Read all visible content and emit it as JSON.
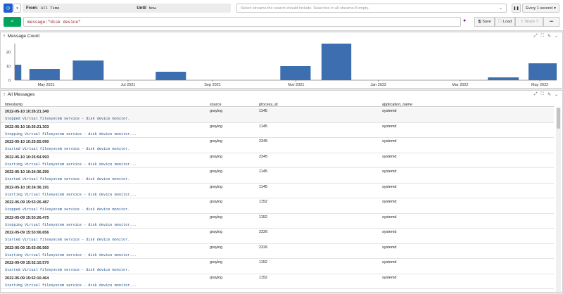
{
  "toolbar": {
    "from_label": "From:",
    "from_value": "All Time",
    "until_label": "Until",
    "until_value": "Now",
    "streams_placeholder": "Select streams the search should include. Searches in all streams if empty.",
    "refresh_label": "Every 1 second"
  },
  "query": {
    "text": "message:\"disk device\""
  },
  "actions": {
    "save": "Save",
    "load": "Load",
    "share": "Share"
  },
  "count_panel": {
    "title": "Message Count"
  },
  "chart_data": {
    "type": "bar",
    "title": "",
    "x_tick_labels": [
      "May 2021",
      "Jul 2021",
      "Sep 2021",
      "Nov 2021",
      "Jan 2022",
      "Mar 2022",
      "May 2022"
    ],
    "y_tick_labels": [
      "0",
      "10",
      "20"
    ],
    "ylim": [
      0,
      26
    ],
    "values": [
      11,
      8,
      14,
      6,
      10,
      26,
      2,
      12
    ],
    "grid": false,
    "color": "#3d6fb0"
  },
  "messages_panel": {
    "title": "All Messages",
    "columns": [
      "timestamp",
      "source",
      "process_id",
      "application_name"
    ]
  },
  "rows": [
    {
      "timestamp": "2022-05-10 10:26:21.340",
      "source": "graylog",
      "process_id": "1145",
      "application_name": "systemd",
      "message": "Stopped Virtual filesystem service - disk device monitor."
    },
    {
      "timestamp": "2022-05-10 10:26:21.303",
      "source": "graylog",
      "process_id": "1145",
      "application_name": "systemd",
      "message": "Stopping Virtual filesystem service - disk device monitor..."
    },
    {
      "timestamp": "2022-05-10 10:25:55.090",
      "source": "graylog",
      "process_id": "2345",
      "application_name": "systemd",
      "message": "Started Virtual filesystem service - disk device monitor."
    },
    {
      "timestamp": "2022-05-10 10:25:54.993",
      "source": "graylog",
      "process_id": "2345",
      "application_name": "systemd",
      "message": "Starting Virtual filesystem service - disk device monitor..."
    },
    {
      "timestamp": "2022-05-10 10:24:36.290",
      "source": "graylog",
      "process_id": "1145",
      "application_name": "systemd",
      "message": "Started Virtual filesystem service - disk device monitor."
    },
    {
      "timestamp": "2022-05-10 10:24:36.191",
      "source": "graylog",
      "process_id": "1145",
      "application_name": "systemd",
      "message": "Starting Virtual filesystem service - disk device monitor..."
    },
    {
      "timestamp": "2022-05-09 15:53:26.487",
      "source": "graylog",
      "process_id": "1152",
      "application_name": "systemd",
      "message": "Stopped Virtual filesystem service - disk device monitor."
    },
    {
      "timestamp": "2022-05-09 15:53:26.475",
      "source": "graylog",
      "process_id": "1152",
      "application_name": "systemd",
      "message": "Stopping Virtual filesystem service - disk device monitor..."
    },
    {
      "timestamp": "2022-05-09 15:53:06.656",
      "source": "graylog",
      "process_id": "2326",
      "application_name": "systemd",
      "message": "Started Virtual filesystem service - disk device monitor."
    },
    {
      "timestamp": "2022-05-09 15:53:06.560",
      "source": "graylog",
      "process_id": "2326",
      "application_name": "systemd",
      "message": "Starting Virtual filesystem service - disk device monitor..."
    },
    {
      "timestamp": "2022-05-09 15:52:10.570",
      "source": "graylog",
      "process_id": "1152",
      "application_name": "systemd",
      "message": "Started Virtual filesystem service - disk device monitor."
    },
    {
      "timestamp": "2022-05-09 15:52:10.464",
      "source": "graylog",
      "process_id": "1152",
      "application_name": "systemd",
      "message": "Starting Virtual filesystem service - disk device monitor..."
    }
  ]
}
